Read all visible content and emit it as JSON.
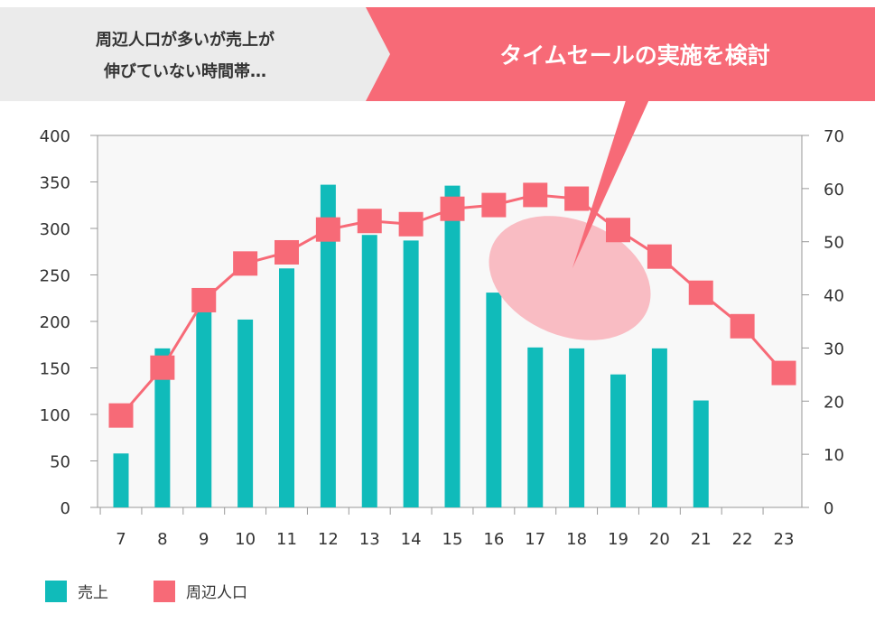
{
  "banner": {
    "left_text_line1": "周辺人口が多いが売上が",
    "left_text_line2": "伸びていない時間帯…",
    "right_text": "タイムセールの実施を検討"
  },
  "colors": {
    "bar": "#10bbba",
    "line": "#f76a77",
    "banner_left": "#ebebeb",
    "banner_right": "#f76a77",
    "highlight": "#f9bcc3"
  },
  "chart_data": {
    "type": "bar+line",
    "categories": [
      "7",
      "8",
      "9",
      "10",
      "11",
      "12",
      "13",
      "14",
      "15",
      "16",
      "17",
      "18",
      "19",
      "20",
      "21",
      "22",
      "23"
    ],
    "series": [
      {
        "name": "売上",
        "type": "bar",
        "axis": "left",
        "values": [
          58,
          171,
          215,
          202,
          257,
          347,
          293,
          287,
          346,
          231,
          172,
          171,
          143,
          171,
          115,
          null,
          null
        ]
      },
      {
        "name": "周辺人口",
        "type": "line",
        "axis": "right",
        "values": [
          17.3,
          26.3,
          39,
          45.9,
          48,
          52.3,
          53.9,
          53.3,
          56.2,
          56.9,
          58.8,
          58.1,
          52.2,
          47.2,
          40.4,
          34.1,
          25.3
        ]
      }
    ],
    "ylim_left": [
      0,
      400
    ],
    "yticks_left": [
      "0",
      "50",
      "100",
      "150",
      "200",
      "250",
      "300",
      "350",
      "400"
    ],
    "ylim_right": [
      0,
      70
    ],
    "yticks_right": [
      "0",
      "10",
      "20",
      "30",
      "40",
      "50",
      "60",
      "70"
    ],
    "grid": false,
    "legend": "bottom-left",
    "annotation": "highlighted hours 17–19"
  }
}
